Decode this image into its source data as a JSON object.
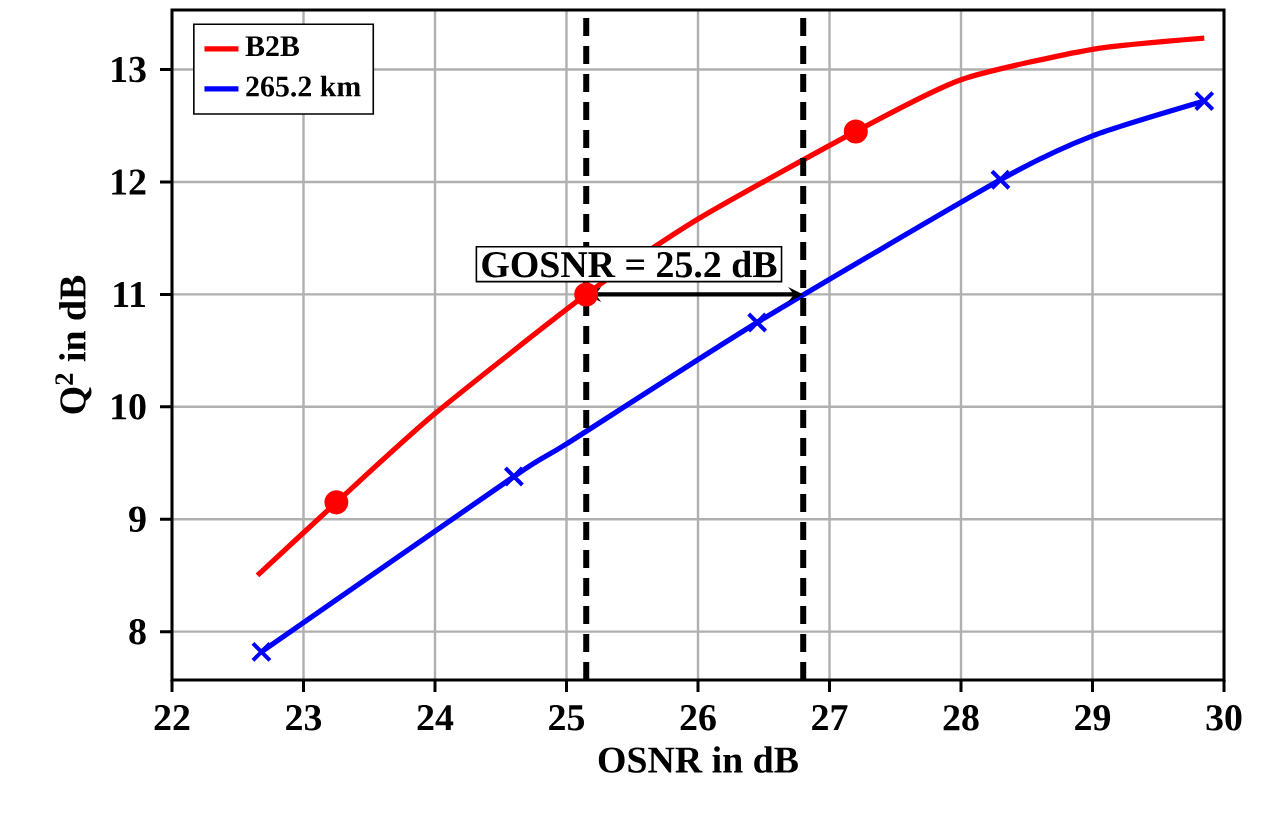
{
  "chart_data": {
    "type": "line",
    "xlabel": "OSNR in dB",
    "ylabel": "Q$^{2}$ in dB",
    "xlim": [
      22,
      30
    ],
    "ylim": [
      7.57,
      13.53
    ],
    "xticks": [
      22,
      23,
      24,
      25,
      26,
      27,
      28,
      29,
      30
    ],
    "yticks": [
      8,
      9,
      10,
      11,
      12,
      13
    ],
    "grid": true,
    "legend": "top left",
    "line_style": "solid",
    "series": [
      {
        "name": "B2B",
        "color": "#ff0000",
        "x": [
          22.65,
          23.25,
          24,
          25.15,
          26,
          27.2,
          28,
          29,
          29.85
        ],
        "values": [
          8.5,
          9.15,
          9.94,
          11.0,
          11.67,
          12.45,
          12.91,
          13.18,
          13.28
        ]
      },
      {
        "name": "265.2 km",
        "color": "#0000ff",
        "x": [
          22.68,
          24.6,
          25,
          26.45,
          28.3,
          29,
          29.85
        ],
        "values": [
          7.82,
          9.38,
          9.67,
          10.75,
          12.02,
          12.41,
          12.72
        ]
      },
      {
        "type": "scatter",
        "marker": "circle",
        "color": "#ff0000",
        "x": [
          23.25,
          25.15,
          27.2
        ],
        "values": [
          9.15,
          11.0,
          12.45
        ]
      },
      {
        "type": "scatter",
        "marker": "cross",
        "color": "#0000ff",
        "x": [
          22.68,
          24.6,
          26.45,
          28.3,
          29.85
        ],
        "values": [
          7.82,
          9.38,
          10.75,
          12.02,
          12.72
        ]
      }
    ],
    "ref_lines": [
      {
        "axis": "x",
        "value": 25.15,
        "color": "#000000",
        "line_style": "dashed"
      },
      {
        "axis": "x",
        "value": 26.8,
        "color": "#000000",
        "line_style": "dashed"
      }
    ],
    "annotations": [
      "GOSNR = 25.2 dB"
    ]
  }
}
